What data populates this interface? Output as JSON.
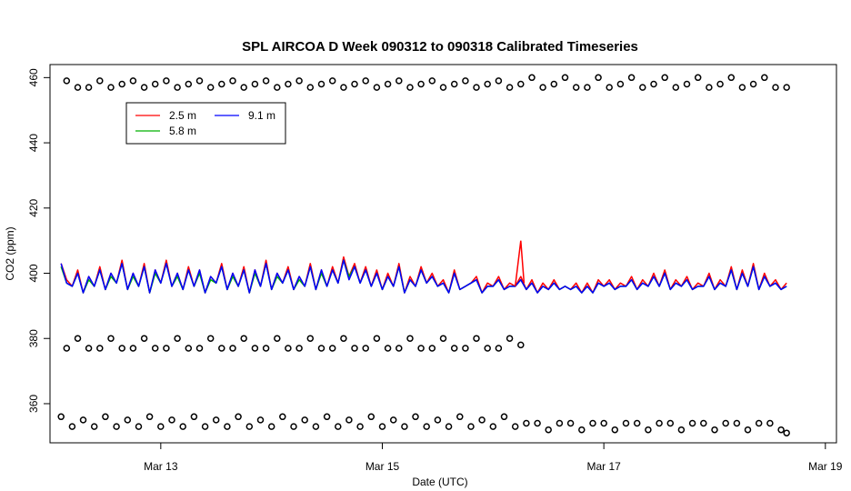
{
  "chart_data": {
    "type": "line",
    "title": "SPL AIRCOA D  Week 090312 to 090318  Calibrated Timeseries",
    "xlabel": "Date (UTC)",
    "ylabel": "CO2 (ppm)",
    "x_unit": "days (March 2009)",
    "xlim": [
      12.0,
      19.1
    ],
    "ylim": [
      348,
      464
    ],
    "x_ticks": [
      13,
      15,
      17,
      19
    ],
    "x_tick_labels": [
      "Mar 13",
      "Mar 15",
      "Mar 17",
      "Mar 19"
    ],
    "y_ticks": [
      360,
      380,
      400,
      420,
      440,
      460
    ],
    "y_tick_labels": [
      "360",
      "380",
      "400",
      "420",
      "440",
      "460"
    ],
    "grid": false,
    "legend_position": "top-left",
    "legend": [
      {
        "label": "2.5 m",
        "color": "#ff0000"
      },
      {
        "label": "5.8 m",
        "color": "#00b000"
      },
      {
        "label": "9.1 m",
        "color": "#0000ff"
      }
    ],
    "series": [
      {
        "name": "2.5 m",
        "color": "#ff0000",
        "style": "line",
        "x": [
          12.1,
          12.15,
          12.2,
          12.25,
          12.3,
          12.35,
          12.4,
          12.45,
          12.5,
          12.55,
          12.6,
          12.65,
          12.7,
          12.75,
          12.8,
          12.85,
          12.9,
          12.95,
          13.0,
          13.05,
          13.1,
          13.15,
          13.2,
          13.25,
          13.3,
          13.35,
          13.4,
          13.45,
          13.5,
          13.55,
          13.6,
          13.65,
          13.7,
          13.75,
          13.8,
          13.85,
          13.9,
          13.95,
          14.0,
          14.05,
          14.1,
          14.15,
          14.2,
          14.25,
          14.3,
          14.35,
          14.4,
          14.45,
          14.5,
          14.55,
          14.6,
          14.65,
          14.7,
          14.75,
          14.8,
          14.85,
          14.9,
          14.95,
          15.0,
          15.05,
          15.1,
          15.15,
          15.2,
          15.25,
          15.3,
          15.35,
          15.4,
          15.45,
          15.5,
          15.55,
          15.6,
          15.65,
          15.7,
          15.75,
          15.8,
          15.85,
          15.9,
          15.95,
          16.0,
          16.05,
          16.1,
          16.15,
          16.2,
          16.25,
          16.3,
          16.35,
          16.4,
          16.45,
          16.5,
          16.55,
          16.6,
          16.65,
          16.7,
          16.75,
          16.8,
          16.85,
          16.9,
          16.95,
          17.0,
          17.05,
          17.1,
          17.15,
          17.2,
          17.25,
          17.3,
          17.35,
          17.4,
          17.45,
          17.5,
          17.55,
          17.6,
          17.65,
          17.7,
          17.75,
          17.8,
          17.85,
          17.9,
          17.95,
          18.0,
          18.05,
          18.1,
          18.15,
          18.2,
          18.25,
          18.3,
          18.35,
          18.4,
          18.45,
          18.5,
          18.55,
          18.6,
          18.65
        ],
        "y": [
          403,
          398,
          396,
          401,
          394,
          399,
          396,
          402,
          395,
          400,
          397,
          404,
          395,
          400,
          396,
          403,
          394,
          401,
          397,
          404,
          396,
          400,
          395,
          402,
          396,
          401,
          394,
          399,
          397,
          403,
          395,
          400,
          396,
          402,
          394,
          401,
          396,
          404,
          395,
          400,
          397,
          402,
          395,
          399,
          396,
          403,
          395,
          401,
          396,
          402,
          397,
          405,
          399,
          403,
          397,
          402,
          396,
          401,
          395,
          400,
          396,
          403,
          394,
          399,
          396,
          402,
          397,
          400,
          396,
          398,
          394,
          401,
          395,
          396,
          397,
          399,
          394,
          397,
          396,
          399,
          395,
          397,
          396,
          399,
          395,
          398,
          394,
          397,
          395,
          398,
          395,
          396,
          395,
          397,
          394,
          397,
          394,
          398,
          396,
          398,
          395,
          397,
          396,
          399,
          395,
          398,
          396,
          400,
          396,
          401,
          395,
          398,
          396,
          399,
          395,
          397,
          396,
          400,
          395,
          398,
          396,
          402,
          395,
          401,
          396,
          403,
          395,
          400,
          396,
          398,
          395,
          397
        ]
      },
      {
        "name": "5.8 m",
        "color": "#00b000",
        "style": "line",
        "x": [
          12.1,
          12.15,
          12.2,
          12.25,
          12.3,
          12.35,
          12.4,
          12.45,
          12.5,
          12.55,
          12.6,
          12.65,
          12.7,
          12.75,
          12.8,
          12.85,
          12.9,
          12.95,
          13.0,
          13.05,
          13.1,
          13.15,
          13.2,
          13.25,
          13.3,
          13.35,
          13.4,
          13.45,
          13.5,
          13.55,
          13.6,
          13.65,
          13.7,
          13.75,
          13.8,
          13.85,
          13.9,
          13.95,
          14.0,
          14.05,
          14.1,
          14.15,
          14.2,
          14.25,
          14.3,
          14.35,
          14.4,
          14.45,
          14.5,
          14.55,
          14.6,
          14.65,
          14.7,
          14.75,
          14.8,
          14.85,
          14.9,
          14.95,
          15.0,
          15.05,
          15.1,
          15.15,
          15.2,
          15.25,
          15.3,
          15.35,
          15.4,
          15.45,
          15.5,
          15.55,
          15.6,
          15.65,
          15.7,
          15.75,
          15.8,
          15.85,
          15.9,
          15.95,
          16.0,
          16.05,
          16.1,
          16.15,
          16.2,
          16.25,
          16.3,
          16.35,
          16.4,
          16.45,
          16.5,
          16.55,
          16.6,
          16.65,
          16.7,
          16.75,
          16.8,
          16.85,
          16.9,
          16.95,
          17.0,
          17.05,
          17.1,
          17.15,
          17.2,
          17.25,
          17.3,
          17.35,
          17.4,
          17.45,
          17.5,
          17.55,
          17.6,
          17.65,
          17.7,
          17.75,
          17.8,
          17.85,
          17.9,
          17.95,
          18.0,
          18.05,
          18.1,
          18.15,
          18.2,
          18.25,
          18.3,
          18.35,
          18.4,
          18.45,
          18.5,
          18.55,
          18.6,
          18.65
        ],
        "y": [
          402,
          397,
          396,
          400,
          394,
          398,
          396,
          401,
          395,
          399,
          397,
          403,
          395,
          399,
          396,
          402,
          394,
          400,
          397,
          403,
          396,
          399,
          395,
          401,
          396,
          400,
          394,
          398,
          397,
          402,
          395,
          399,
          396,
          401,
          394,
          400,
          396,
          403,
          395,
          399,
          397,
          401,
          395,
          398,
          396,
          402,
          395,
          400,
          396,
          401,
          397,
          404,
          399,
          402,
          397,
          401,
          396,
          400,
          395,
          399,
          396,
          402,
          394,
          398,
          396,
          401,
          397,
          399,
          396,
          397,
          394,
          400,
          395,
          396,
          397,
          398,
          394,
          396,
          396,
          398,
          395,
          396,
          396,
          398,
          395,
          397,
          394,
          396,
          395,
          397,
          395,
          396,
          395,
          396,
          394,
          396,
          394,
          397,
          396,
          397,
          395,
          396,
          396,
          398,
          395,
          397,
          396,
          399,
          396,
          400,
          395,
          397,
          396,
          398,
          395,
          396,
          396,
          399,
          395,
          397,
          396,
          401,
          395,
          400,
          396,
          402,
          395,
          399,
          396,
          397,
          395,
          396
        ]
      },
      {
        "name": "9.1 m",
        "color": "#0000ff",
        "style": "line",
        "x": [
          12.1,
          12.15,
          12.2,
          12.25,
          12.3,
          12.35,
          12.4,
          12.45,
          12.5,
          12.55,
          12.6,
          12.65,
          12.7,
          12.75,
          12.8,
          12.85,
          12.9,
          12.95,
          13.0,
          13.05,
          13.1,
          13.15,
          13.2,
          13.25,
          13.3,
          13.35,
          13.4,
          13.45,
          13.5,
          13.55,
          13.6,
          13.65,
          13.7,
          13.75,
          13.8,
          13.85,
          13.9,
          13.95,
          14.0,
          14.05,
          14.1,
          14.15,
          14.2,
          14.25,
          14.3,
          14.35,
          14.4,
          14.45,
          14.5,
          14.55,
          14.6,
          14.65,
          14.7,
          14.75,
          14.8,
          14.85,
          14.9,
          14.95,
          15.0,
          15.05,
          15.1,
          15.15,
          15.2,
          15.25,
          15.3,
          15.35,
          15.4,
          15.45,
          15.5,
          15.55,
          15.6,
          15.65,
          15.7,
          15.75,
          15.8,
          15.85,
          15.9,
          15.95,
          16.0,
          16.05,
          16.1,
          16.15,
          16.2,
          16.25,
          16.3,
          16.35,
          16.4,
          16.45,
          16.5,
          16.55,
          16.6,
          16.65,
          16.7,
          16.75,
          16.8,
          16.85,
          16.9,
          16.95,
          17.0,
          17.05,
          17.1,
          17.15,
          17.2,
          17.25,
          17.3,
          17.35,
          17.4,
          17.45,
          17.5,
          17.55,
          17.6,
          17.65,
          17.7,
          17.75,
          17.8,
          17.85,
          17.9,
          17.95,
          18.0,
          18.05,
          18.1,
          18.15,
          18.2,
          18.25,
          18.3,
          18.35,
          18.4,
          18.45,
          18.5,
          18.55,
          18.6,
          18.65
        ],
        "y": [
          403,
          397,
          396,
          400,
          394,
          399,
          396,
          401,
          395,
          400,
          397,
          403,
          395,
          400,
          396,
          402,
          394,
          401,
          397,
          403,
          396,
          400,
          395,
          401,
          396,
          401,
          394,
          399,
          397,
          402,
          395,
          400,
          396,
          401,
          394,
          401,
          396,
          403,
          395,
          400,
          397,
          401,
          395,
          399,
          396,
          402,
          395,
          401,
          396,
          401,
          397,
          404,
          398,
          402,
          397,
          401,
          396,
          400,
          395,
          399,
          396,
          402,
          394,
          398,
          396,
          401,
          397,
          399,
          396,
          397,
          394,
          400,
          395,
          396,
          397,
          398,
          394,
          396,
          396,
          398,
          395,
          396,
          396,
          398,
          395,
          397,
          394,
          396,
          395,
          397,
          395,
          396,
          395,
          396,
          394,
          396,
          394,
          397,
          396,
          397,
          395,
          396,
          396,
          398,
          395,
          397,
          396,
          399,
          396,
          400,
          395,
          397,
          396,
          398,
          395,
          396,
          396,
          399,
          395,
          397,
          396,
          401,
          395,
          400,
          396,
          402,
          395,
          399,
          396,
          397,
          395,
          396
        ]
      },
      {
        "name": "calibration-high",
        "color": "#000000",
        "style": "points",
        "x": [
          12.15,
          12.25,
          12.35,
          12.45,
          12.55,
          12.65,
          12.75,
          12.85,
          12.95,
          13.05,
          13.15,
          13.25,
          13.35,
          13.45,
          13.55,
          13.65,
          13.75,
          13.85,
          13.95,
          14.05,
          14.15,
          14.25,
          14.35,
          14.45,
          14.55,
          14.65,
          14.75,
          14.85,
          14.95,
          15.05,
          15.15,
          15.25,
          15.35,
          15.45,
          15.55,
          15.65,
          15.75,
          15.85,
          15.95,
          16.05,
          16.15,
          16.25,
          16.35,
          16.45,
          16.55,
          16.65,
          16.75,
          16.85,
          16.95,
          17.05,
          17.15,
          17.25,
          17.35,
          17.45,
          17.55,
          17.65,
          17.75,
          17.85,
          17.95,
          18.05,
          18.15,
          18.25,
          18.35,
          18.45,
          18.55,
          18.65
        ],
        "y": [
          459,
          457,
          457,
          459,
          457,
          458,
          459,
          457,
          458,
          459,
          457,
          458,
          459,
          457,
          458,
          459,
          457,
          458,
          459,
          457,
          458,
          459,
          457,
          458,
          459,
          457,
          458,
          459,
          457,
          458,
          459,
          457,
          458,
          459,
          457,
          458,
          459,
          457,
          458,
          459,
          457,
          458,
          460,
          457,
          458,
          460,
          457,
          457,
          460,
          457,
          458,
          460,
          457,
          458,
          460,
          457,
          458,
          460,
          457,
          458,
          460,
          457,
          458,
          460,
          457,
          457
        ]
      },
      {
        "name": "calibration-mid",
        "color": "#000000",
        "style": "points",
        "x": [
          12.15,
          12.25,
          12.35,
          12.45,
          12.55,
          12.65,
          12.75,
          12.85,
          12.95,
          13.05,
          13.15,
          13.25,
          13.35,
          13.45,
          13.55,
          13.65,
          13.75,
          13.85,
          13.95,
          14.05,
          14.15,
          14.25,
          14.35,
          14.45,
          14.55,
          14.65,
          14.75,
          14.85,
          14.95,
          15.05,
          15.15,
          15.25,
          15.35,
          15.45,
          15.55,
          15.65,
          15.75,
          15.85,
          15.95,
          16.05,
          16.15,
          16.25
        ],
        "y": [
          377,
          380,
          377,
          377,
          380,
          377,
          377,
          380,
          377,
          377,
          380,
          377,
          377,
          380,
          377,
          377,
          380,
          377,
          377,
          380,
          377,
          377,
          380,
          377,
          377,
          380,
          377,
          377,
          380,
          377,
          377,
          380,
          377,
          377,
          380,
          377,
          377,
          380,
          377,
          377,
          380,
          378
        ]
      },
      {
        "name": "calibration-low",
        "color": "#000000",
        "style": "points",
        "x": [
          12.1,
          12.2,
          12.3,
          12.4,
          12.5,
          12.6,
          12.7,
          12.8,
          12.9,
          13.0,
          13.1,
          13.2,
          13.3,
          13.4,
          13.5,
          13.6,
          13.7,
          13.8,
          13.9,
          14.0,
          14.1,
          14.2,
          14.3,
          14.4,
          14.5,
          14.6,
          14.7,
          14.8,
          14.9,
          15.0,
          15.1,
          15.2,
          15.3,
          15.4,
          15.5,
          15.6,
          15.7,
          15.8,
          15.9,
          16.0,
          16.1,
          16.2,
          16.3,
          16.4,
          16.5,
          16.6,
          16.7,
          16.8,
          16.9,
          17.0,
          17.1,
          17.2,
          17.3,
          17.4,
          17.5,
          17.6,
          17.7,
          17.8,
          17.9,
          18.0,
          18.1,
          18.2,
          18.3,
          18.4,
          18.5,
          18.6,
          18.65
        ],
        "y": [
          356,
          353,
          355,
          353,
          356,
          353,
          355,
          353,
          356,
          353,
          355,
          353,
          356,
          353,
          355,
          353,
          356,
          353,
          355,
          353,
          356,
          353,
          355,
          353,
          356,
          353,
          355,
          353,
          356,
          353,
          355,
          353,
          356,
          353,
          355,
          353,
          356,
          353,
          355,
          353,
          356,
          353,
          354,
          354,
          352,
          354,
          354,
          352,
          354,
          354,
          352,
          354,
          354,
          352,
          354,
          354,
          352,
          354,
          354,
          352,
          354,
          354,
          352,
          354,
          354,
          352,
          351
        ]
      }
    ]
  }
}
